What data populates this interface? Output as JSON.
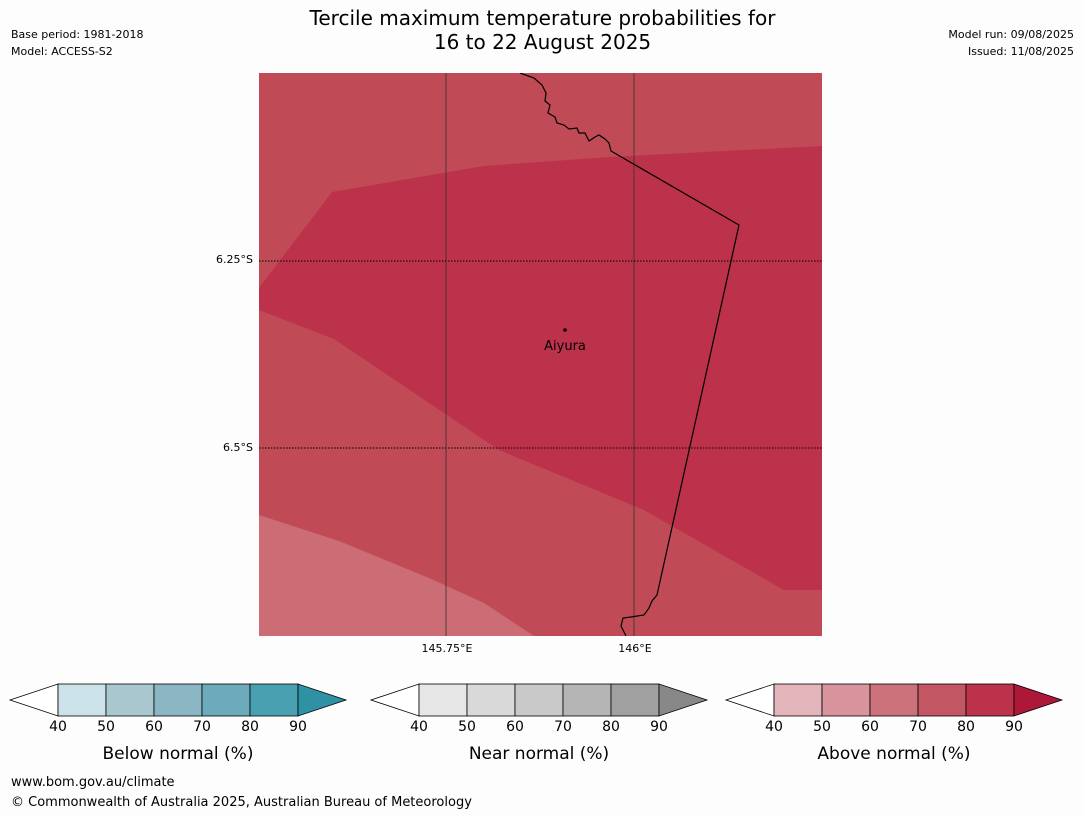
{
  "header": {
    "base_period": "Base period: 1981-2018",
    "model": "Model: ACCESS-S2",
    "title_line1": "Tercile maximum temperature probabilities for",
    "title_line2": "16 to 22 August 2025",
    "model_run": "Model run: 09/08/2025",
    "issued": "Issued: 11/08/2025"
  },
  "map": {
    "lat_labels": [
      "6.25°S",
      "6.5°S"
    ],
    "lon_labels": [
      "145.75°E",
      "146°E"
    ],
    "place": "Aiyura",
    "region_colors": {
      "light": "#cc6c74",
      "mid": "#c04a56",
      "dark": "#bb324a"
    }
  },
  "legends": [
    {
      "name": "below",
      "title": "Below normal (%)",
      "ticks": [
        "40",
        "50",
        "60",
        "70",
        "80",
        "90"
      ],
      "colors": [
        "#cbe2e8",
        "#a8c7ce",
        "#8bb6c4",
        "#6cabbb",
        "#48a0b0",
        "#2f92a4"
      ]
    },
    {
      "name": "near",
      "title": "Near normal (%)",
      "ticks": [
        "40",
        "50",
        "60",
        "70",
        "80",
        "90"
      ],
      "colors": [
        "#e6e6e6",
        "#d9d9d9",
        "#c9c9c9",
        "#b5b5b5",
        "#a0a0a0",
        "#888888"
      ]
    },
    {
      "name": "above",
      "title": "Above normal (%)",
      "ticks": [
        "40",
        "50",
        "60",
        "70",
        "80",
        "90"
      ],
      "colors": [
        "#e2b5bb",
        "#d8939c",
        "#cc727b",
        "#c25663",
        "#bb324a",
        "#ad1838"
      ]
    }
  ],
  "footer": {
    "url": "www.bom.gov.au/climate",
    "copyright": "© Commonwealth of Australia 2025, Australian Bureau of Meteorology"
  }
}
